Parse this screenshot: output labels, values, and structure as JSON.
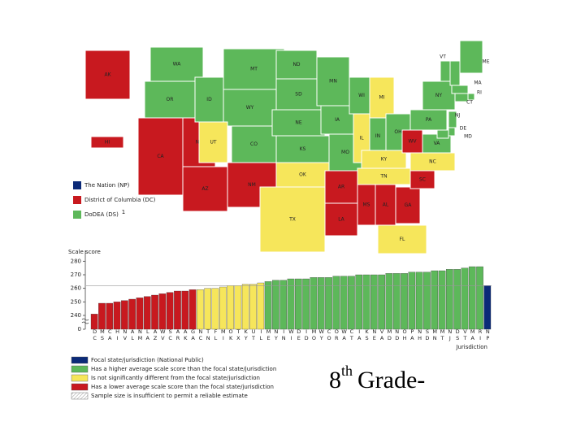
{
  "map": {
    "states": [
      {
        "label": "AK",
        "color": "#c8191f"
      },
      {
        "label": "HI",
        "color": "#c8191f"
      },
      {
        "label": "WA",
        "color": "#5db85a"
      },
      {
        "label": "OR",
        "color": "#5db85a"
      },
      {
        "label": "CA",
        "color": "#c8191f"
      },
      {
        "label": "NV",
        "color": "#c8191f"
      },
      {
        "label": "ID",
        "color": "#5db85a"
      },
      {
        "label": "MT",
        "color": "#5db85a"
      },
      {
        "label": "WY",
        "color": "#5db85a"
      },
      {
        "label": "UT",
        "color": "#f6e65b"
      },
      {
        "label": "CO",
        "color": "#5db85a"
      },
      {
        "label": "AZ",
        "color": "#c8191f"
      },
      {
        "label": "NM",
        "color": "#c8191f"
      },
      {
        "label": "ND",
        "color": "#5db85a"
      },
      {
        "label": "SD",
        "color": "#5db85a"
      },
      {
        "label": "NE",
        "color": "#5db85a"
      },
      {
        "label": "KS",
        "color": "#5db85a"
      },
      {
        "label": "OK",
        "color": "#f6e65b"
      },
      {
        "label": "TX",
        "color": "#f6e65b"
      },
      {
        "label": "MN",
        "color": "#5db85a"
      },
      {
        "label": "IA",
        "color": "#5db85a"
      },
      {
        "label": "MO",
        "color": "#5db85a"
      },
      {
        "label": "AR",
        "color": "#c8191f"
      },
      {
        "label": "LA",
        "color": "#c8191f"
      },
      {
        "label": "WI",
        "color": "#5db85a"
      },
      {
        "label": "IL",
        "color": "#f6e65b"
      },
      {
        "label": "MI",
        "color": "#f6e65b"
      },
      {
        "label": "IN",
        "color": "#5db85a"
      },
      {
        "label": "OH",
        "color": "#5db85a"
      },
      {
        "label": "KY",
        "color": "#f6e65b"
      },
      {
        "label": "TN",
        "color": "#f6e65b"
      },
      {
        "label": "MS",
        "color": "#c8191f"
      },
      {
        "label": "AL",
        "color": "#c8191f"
      },
      {
        "label": "GA",
        "color": "#c8191f"
      },
      {
        "label": "FL",
        "color": "#f6e65b"
      },
      {
        "label": "SC",
        "color": "#c8191f"
      },
      {
        "label": "NC",
        "color": "#f6e65b"
      },
      {
        "label": "WV",
        "color": "#c8191f"
      },
      {
        "label": "VA",
        "color": "#5db85a"
      },
      {
        "label": "PA",
        "color": "#5db85a"
      },
      {
        "label": "NY",
        "color": "#5db85a"
      },
      {
        "label": "VT",
        "color": "#5db85a"
      },
      {
        "label": "NH",
        "color": "#5db85a"
      },
      {
        "label": "ME",
        "color": "#5db85a"
      },
      {
        "label": "MA",
        "color": "#5db85a"
      },
      {
        "label": "RI",
        "color": "#5db85a"
      },
      {
        "label": "CT",
        "color": "#5db85a"
      },
      {
        "label": "NJ",
        "color": "#5db85a"
      },
      {
        "label": "DE",
        "color": "#5db85a"
      },
      {
        "label": "MD",
        "color": "#5db85a"
      }
    ],
    "legend": [
      {
        "label": "The Nation (NP)",
        "color": "#0b2a78"
      },
      {
        "label": "District of Columbia (DC)",
        "color": "#c8191f"
      },
      {
        "label": "DoDEA (DS)",
        "color": "#5db85a",
        "note": "1"
      }
    ]
  },
  "chart_data": {
    "type": "bar",
    "y_label": "Scale score",
    "x_label": "Jurisdiction",
    "categories": [
      "DC",
      "MS",
      "CA",
      "HI",
      "NV",
      "AL",
      "NM",
      "LA",
      "AZ",
      "WV",
      "SC",
      "AR",
      "AK",
      "GA",
      "NC",
      "TN",
      "FL",
      "MI",
      "OK",
      "TX",
      "KY",
      "UT",
      "IL",
      "ME",
      "NY",
      "IN",
      "WI",
      "DE",
      "ID",
      "MO",
      "WY",
      "CO",
      "OR",
      "WA",
      "CT",
      "IA",
      "KS",
      "NE",
      "VA",
      "MD",
      "ND",
      "OH",
      "PA",
      "NH",
      "SD",
      "MN",
      "MT",
      "NJ",
      "DS",
      "VT",
      "MA",
      "RI",
      "NP"
    ],
    "values": [
      241,
      249,
      249,
      250,
      251,
      252,
      253,
      254,
      255,
      256,
      257,
      258,
      258,
      259,
      259,
      260,
      260,
      261,
      262,
      262,
      263,
      263,
      264,
      265,
      266,
      266,
      267,
      267,
      267,
      268,
      268,
      268,
      269,
      269,
      269,
      270,
      270,
      270,
      270,
      271,
      271,
      271,
      272,
      272,
      272,
      273,
      273,
      274,
      274,
      275,
      276,
      276,
      262
    ],
    "colors": [
      "#c8191f",
      "#c8191f",
      "#c8191f",
      "#c8191f",
      "#c8191f",
      "#c8191f",
      "#c8191f",
      "#c8191f",
      "#c8191f",
      "#c8191f",
      "#c8191f",
      "#c8191f",
      "#c8191f",
      "#c8191f",
      "#f6e65b",
      "#f6e65b",
      "#f6e65b",
      "#f6e65b",
      "#f6e65b",
      "#f6e65b",
      "#f6e65b",
      "#f6e65b",
      "#f6e65b",
      "#5db85a",
      "#5db85a",
      "#5db85a",
      "#5db85a",
      "#5db85a",
      "#5db85a",
      "#5db85a",
      "#5db85a",
      "#5db85a",
      "#5db85a",
      "#5db85a",
      "#5db85a",
      "#5db85a",
      "#5db85a",
      "#5db85a",
      "#5db85a",
      "#5db85a",
      "#5db85a",
      "#5db85a",
      "#5db85a",
      "#5db85a",
      "#5db85a",
      "#5db85a",
      "#5db85a",
      "#5db85a",
      "#5db85a",
      "#5db85a",
      "#5db85a",
      "#5db85a",
      "#0b2a78"
    ],
    "reference": 262,
    "ylim": [
      0,
      285
    ],
    "ybreak": [
      0,
      240
    ],
    "yticks": [
      0,
      240,
      250,
      260,
      270,
      280
    ],
    "legend": [
      {
        "label": "Focal state/jurisdiction (National Public)",
        "color": "#0b2a78"
      },
      {
        "label": "Has a higher average scale score than the focal state/jurisdiction",
        "color": "#5db85a"
      },
      {
        "label": "Is not significantly different from the focal state/jurisdiction",
        "color": "#f6e65b"
      },
      {
        "label": "Has a lower average scale score than the focal state/jurisdiction",
        "color": "#c8191f"
      },
      {
        "label": "Sample size is insufficient to permit a reliable estimate",
        "color": "url(#hatch)"
      }
    ]
  },
  "caption": {
    "number": "8",
    "suffix": "th",
    "text": "Grade-"
  }
}
